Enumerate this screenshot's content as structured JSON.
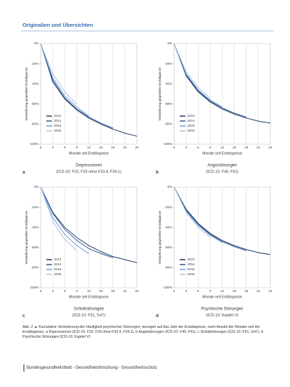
{
  "header": {
    "title": "Originalien und Übersichten"
  },
  "caption": {
    "text": "Abb. 2 ▲ Kumulative Veränderung der Häufigkeit psychischer Störungen, bezogen auf das Jahr der Erstdiagnose, nach Anzahl der Monate seit der Erstdiagnose. a Depressionen (ICD-10: F32, F33 ohne F33.4, F34.1), b Angststörungen (ICD-10: F40, F41), c Schlafstörungen (ICD-10: F51, G47), d Psychische Störungen (ICD-10: Kapitel V)"
  },
  "footer": {
    "text": "Bundesgesundheitsblatt - Gesundheitsforschung - Gesundheitsschutz"
  },
  "chart_data": [
    {
      "type": "line",
      "panel": "a",
      "title": "Depressionen",
      "subtitle": "(ICD-10: F32, F33 ohne F33.4, F34.1)",
      "x_label": "Monate seit Erstdiagnose",
      "y_label": "Veränderung gegenüber Erstdiagnose",
      "x": [
        0,
        3,
        6,
        9,
        12,
        15,
        18,
        21,
        24
      ],
      "xlim": [
        0,
        24
      ],
      "xticks": [
        0,
        3,
        6,
        9,
        12,
        15,
        18,
        21,
        24
      ],
      "ylim": [
        -100,
        0
      ],
      "yticks": [
        {
          "value": 0,
          "label": "0%"
        },
        {
          "value": -20,
          "label": "-20%"
        },
        {
          "value": -40,
          "label": "-40%"
        },
        {
          "value": -60,
          "label": "-60%"
        },
        {
          "value": -80,
          "label": "-80%"
        },
        {
          "value": -100,
          "label": "-100%"
        }
      ],
      "grid": "vertical",
      "legend": "lower left",
      "series": [
        {
          "name": "2013",
          "color": "#1f3864",
          "values": [
            0,
            -38,
            -55,
            -66,
            -74,
            -80,
            -85,
            -89,
            -92
          ]
        },
        {
          "name": "2014",
          "color": "#2e5597",
          "values": [
            0,
            -36,
            -54,
            -65,
            -73,
            -79,
            -84,
            null,
            null
          ]
        },
        {
          "name": "2015",
          "color": "#6e9bd1",
          "values": [
            0,
            -34,
            -52,
            -63,
            -72,
            null,
            null,
            null,
            null
          ]
        },
        {
          "name": "2016",
          "color": "#a9c4e6",
          "values": [
            0,
            -30,
            -48,
            -60,
            null,
            null,
            null,
            null,
            null
          ]
        }
      ]
    },
    {
      "type": "line",
      "panel": "b",
      "title": "Angststörungen",
      "subtitle": "(ICD-10: F40, F41)",
      "x_label": "Monate seit Erstdiagnose",
      "y_label": "Veränderung gegenüber Erstdiagnose",
      "x": [
        0,
        3,
        6,
        9,
        12,
        15,
        18,
        21,
        24
      ],
      "xlim": [
        0,
        24
      ],
      "xticks": [
        0,
        3,
        6,
        9,
        12,
        15,
        18,
        21,
        24
      ],
      "ylim": [
        -100,
        0
      ],
      "yticks": [
        {
          "value": 0,
          "label": "0%"
        },
        {
          "value": -20,
          "label": "-20%"
        },
        {
          "value": -40,
          "label": "-40%"
        },
        {
          "value": -60,
          "label": "-60%"
        },
        {
          "value": -80,
          "label": "-80%"
        },
        {
          "value": -100,
          "label": "-100%"
        }
      ],
      "grid": "vertical",
      "legend": "lower left",
      "series": [
        {
          "name": "2013",
          "color": "#1f3864",
          "values": [
            0,
            -32,
            -48,
            -58,
            -65,
            -70,
            -74,
            -77,
            -79
          ]
        },
        {
          "name": "2014",
          "color": "#2e5597",
          "values": [
            0,
            -31,
            -47,
            -57,
            -64,
            -69,
            -73,
            null,
            null
          ]
        },
        {
          "name": "2015",
          "color": "#6e9bd1",
          "values": [
            0,
            -30,
            -46,
            -56,
            -63,
            null,
            null,
            null,
            null
          ]
        },
        {
          "name": "2016",
          "color": "#a9c4e6",
          "values": [
            0,
            -28,
            -44,
            -54,
            null,
            null,
            null,
            null,
            null
          ]
        }
      ]
    },
    {
      "type": "line",
      "panel": "c",
      "title": "Schlafstörungen",
      "subtitle": "(ICD-10: F51, G47)",
      "x_label": "Monate seit Erstdiagnose",
      "y_label": "Veränderung gegenüber Erstdiagnose",
      "x": [
        0,
        3,
        6,
        9,
        12,
        15,
        18,
        21,
        24
      ],
      "xlim": [
        0,
        24
      ],
      "xticks": [
        0,
        3,
        6,
        9,
        12,
        15,
        18,
        21,
        24
      ],
      "ylim": [
        -100,
        0
      ],
      "yticks": [
        {
          "value": 0,
          "label": "0%"
        },
        {
          "value": -20,
          "label": "-20%"
        },
        {
          "value": -40,
          "label": "-40%"
        },
        {
          "value": -60,
          "label": "-60%"
        },
        {
          "value": -80,
          "label": "-80%"
        },
        {
          "value": -100,
          "label": "-100%"
        }
      ],
      "grid": "vertical",
      "legend": "lower left",
      "series": [
        {
          "name": "2013",
          "color": "#1f3864",
          "values": [
            0,
            -25,
            -40,
            -50,
            -58,
            -64,
            -69,
            -72,
            -75
          ]
        },
        {
          "name": "2014",
          "color": "#2e5597",
          "values": [
            0,
            -26,
            -42,
            -53,
            -61,
            -66,
            -70,
            null,
            null
          ]
        },
        {
          "name": "2015",
          "color": "#6e9bd1",
          "values": [
            0,
            -30,
            -47,
            -58,
            -66,
            null,
            null,
            null,
            null
          ]
        },
        {
          "name": "2016",
          "color": "#a9c4e6",
          "values": [
            0,
            -34,
            -52,
            -63,
            null,
            null,
            null,
            null,
            null
          ]
        }
      ]
    },
    {
      "type": "line",
      "panel": "d",
      "title": "Psychische Störungen",
      "subtitle": "(ICD-10: Kapitel V)",
      "x_label": "Monate seit Erstdiagnose",
      "y_label": "Veränderung gegenüber Erstdiagnose",
      "x": [
        0,
        3,
        6,
        9,
        12,
        15,
        18,
        21,
        24
      ],
      "xlim": [
        0,
        24
      ],
      "xticks": [
        0,
        3,
        6,
        9,
        12,
        15,
        18,
        21,
        24
      ],
      "ylim": [
        -100,
        0
      ],
      "yticks": [
        {
          "value": 0,
          "label": "0%"
        },
        {
          "value": -20,
          "label": "-20%"
        },
        {
          "value": -40,
          "label": "-40%"
        },
        {
          "value": -60,
          "label": "-60%"
        },
        {
          "value": -80,
          "label": "-80%"
        },
        {
          "value": -100,
          "label": "-100%"
        }
      ],
      "grid": "vertical",
      "legend": "lower left",
      "series": [
        {
          "name": "2013",
          "color": "#1f3864",
          "values": [
            0,
            -22,
            -36,
            -46,
            -53,
            -58,
            -62,
            -65,
            -67
          ]
        },
        {
          "name": "2014",
          "color": "#2e5597",
          "values": [
            0,
            -23,
            -37,
            -47,
            -54,
            -59,
            -63,
            null,
            null
          ]
        },
        {
          "name": "2015",
          "color": "#6e9bd1",
          "values": [
            0,
            -24,
            -38,
            -48,
            -55,
            null,
            null,
            null,
            null
          ]
        },
        {
          "name": "2016",
          "color": "#a9c4e6",
          "values": [
            0,
            -25,
            -40,
            -50,
            null,
            null,
            null,
            null,
            null
          ]
        }
      ]
    }
  ]
}
